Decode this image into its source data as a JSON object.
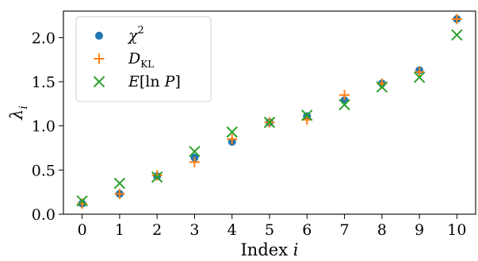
{
  "chart_data": {
    "type": "scatter",
    "title": "",
    "xlabel": "Index i",
    "ylabel": "λ_i",
    "x": [
      0,
      1,
      2,
      3,
      4,
      5,
      6,
      7,
      8,
      9,
      10
    ],
    "xlim": [
      -0.5,
      10.5
    ],
    "ylim": [
      0.0,
      2.3
    ],
    "x_ticks": [
      "0",
      "1",
      "2",
      "3",
      "4",
      "5",
      "6",
      "7",
      "8",
      "9",
      "10"
    ],
    "y_ticks": [
      "0.0",
      "0.5",
      "1.0",
      "1.5",
      "2.0"
    ],
    "grid": false,
    "legend_position": "top-left",
    "series": [
      {
        "name": "χ²",
        "marker": "circle",
        "color": "#1f77b4",
        "values": [
          0.12,
          0.23,
          0.43,
          0.64,
          0.82,
          1.04,
          1.11,
          1.29,
          1.48,
          1.63,
          2.21
        ]
      },
      {
        "name": "D_KL",
        "marker": "plus",
        "color": "#ff7f0e",
        "values": [
          0.12,
          0.23,
          0.44,
          0.59,
          0.85,
          1.04,
          1.07,
          1.35,
          1.48,
          1.61,
          2.21
        ]
      },
      {
        "name": "E[ln P]",
        "marker": "x",
        "color": "#2ca02c",
        "values": [
          0.15,
          0.35,
          0.42,
          0.71,
          0.93,
          1.04,
          1.12,
          1.24,
          1.44,
          1.55,
          2.03
        ]
      }
    ]
  }
}
